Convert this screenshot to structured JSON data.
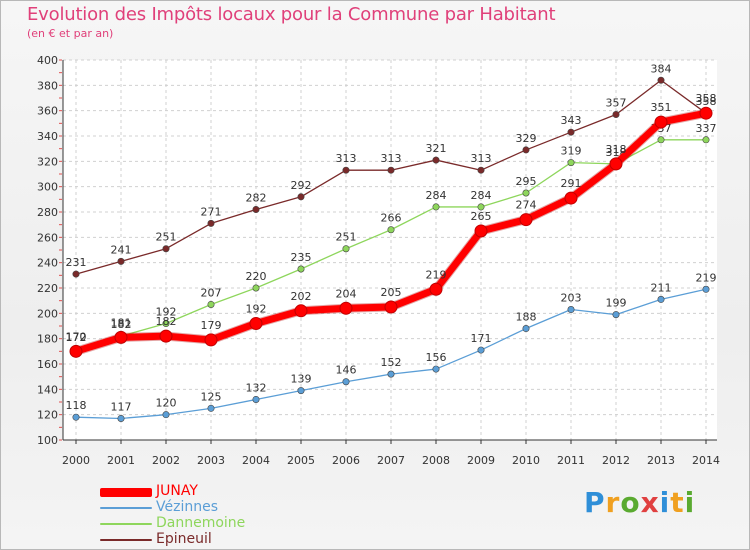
{
  "header": {
    "title": "Evolution des Impôts locaux pour la Commune par Habitant",
    "subtitle": "(en € et par an)"
  },
  "logo": {
    "letters": [
      "P",
      "r",
      "o",
      "x",
      "i",
      "t",
      "i"
    ],
    "colors": [
      "#2f8fd8",
      "#f0a020",
      "#5aaa30",
      "#e04040",
      "#2f8fd8",
      "#f0a020",
      "#5aaa30"
    ]
  },
  "chart_data": {
    "type": "line",
    "title": "Evolution des Impôts locaux pour la Commune par Habitant",
    "subtitle": "(en € et par an)",
    "xlabel": "",
    "ylabel": "",
    "x": [
      "2000",
      "2001",
      "2002",
      "2003",
      "2004",
      "2005",
      "2006",
      "2007",
      "2008",
      "2009",
      "2010",
      "2011",
      "2012",
      "2013",
      "2014"
    ],
    "ylim": [
      100,
      400
    ],
    "yticks": [
      100,
      120,
      140,
      160,
      180,
      200,
      220,
      240,
      260,
      280,
      300,
      320,
      340,
      360,
      380,
      400
    ],
    "grid": true,
    "legend_position": "bottom-left",
    "series": [
      {
        "name": "JUNAY",
        "color": "#ff0000",
        "values": [
          170,
          181,
          182,
          179,
          192,
          202,
          204,
          205,
          219,
          265,
          274,
          291,
          318,
          351,
          358
        ]
      },
      {
        "name": "Vézinnes",
        "color": "#5b9ed6",
        "values": [
          118,
          117,
          120,
          125,
          132,
          139,
          146,
          152,
          156,
          171,
          188,
          203,
          199,
          211,
          219
        ]
      },
      {
        "name": "Dannemoine",
        "color": "#8ed65c",
        "values": [
          172,
          182,
          192,
          207,
          220,
          235,
          251,
          266,
          284,
          284,
          295,
          319,
          318,
          337,
          337
        ]
      },
      {
        "name": "Epineuil",
        "color": "#7a2a2a",
        "values": [
          231,
          241,
          251,
          271,
          282,
          292,
          313,
          313,
          321,
          313,
          329,
          343,
          357,
          384,
          358
        ]
      }
    ]
  }
}
